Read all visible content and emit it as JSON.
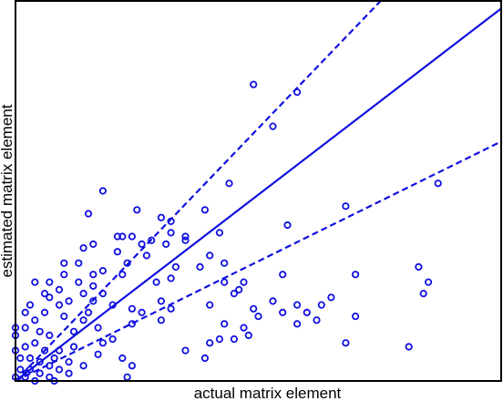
{
  "chart_data": {
    "type": "scatter",
    "title": "",
    "xlabel": "actual matrix element",
    "ylabel": "estimated matrix element",
    "xlim": [
      0,
      1
    ],
    "ylim": [
      0,
      1
    ],
    "grid": false,
    "legend": "none",
    "colors": {
      "marker": "#1010e0",
      "lines": "#1010e0",
      "frame": "#000000"
    },
    "lines": [
      {
        "style": "solid",
        "slope": 0.98
      },
      {
        "style": "dashed",
        "slope": 1.33
      },
      {
        "style": "dashed",
        "slope": 0.63
      }
    ],
    "series": [
      {
        "points": [
          [
            0.49,
            0.78
          ],
          [
            0.58,
            0.76
          ],
          [
            0.53,
            0.67
          ],
          [
            0.44,
            0.52
          ],
          [
            0.87,
            0.52
          ],
          [
            0.18,
            0.5
          ],
          [
            0.15,
            0.44
          ],
          [
            0.39,
            0.45
          ],
          [
            0.3,
            0.43
          ],
          [
            0.32,
            0.42
          ],
          [
            0.32,
            0.39
          ],
          [
            0.35,
            0.37
          ],
          [
            0.56,
            0.41
          ],
          [
            0.68,
            0.46
          ],
          [
            0.21,
            0.38
          ],
          [
            0.22,
            0.38
          ],
          [
            0.24,
            0.38
          ],
          [
            0.26,
            0.36
          ],
          [
            0.28,
            0.37
          ],
          [
            0.31,
            0.36
          ],
          [
            0.16,
            0.36
          ],
          [
            0.14,
            0.35
          ],
          [
            0.21,
            0.34
          ],
          [
            0.27,
            0.33
          ],
          [
            0.23,
            0.31
          ],
          [
            0.32,
            0.27
          ],
          [
            0.33,
            0.3
          ],
          [
            0.29,
            0.26
          ],
          [
            0.22,
            0.28
          ],
          [
            0.18,
            0.29
          ],
          [
            0.16,
            0.28
          ],
          [
            0.13,
            0.31
          ],
          [
            0.13,
            0.26
          ],
          [
            0.1,
            0.31
          ],
          [
            0.1,
            0.28
          ],
          [
            0.16,
            0.25
          ],
          [
            0.14,
            0.23
          ],
          [
            0.11,
            0.21
          ],
          [
            0.09,
            0.24
          ],
          [
            0.06,
            0.23
          ],
          [
            0.09,
            0.2
          ],
          [
            0.1,
            0.17
          ],
          [
            0.06,
            0.18
          ],
          [
            0.2,
            0.2
          ],
          [
            0.16,
            0.21
          ],
          [
            0.18,
            0.23
          ],
          [
            0.24,
            0.19
          ],
          [
            0.26,
            0.18
          ],
          [
            0.3,
            0.21
          ],
          [
            0.32,
            0.19
          ],
          [
            0.3,
            0.16
          ],
          [
            0.24,
            0.15
          ],
          [
            0.15,
            0.18
          ],
          [
            0.17,
            0.14
          ],
          [
            0.14,
            0.16
          ],
          [
            0.12,
            0.13
          ],
          [
            0.2,
            0.11
          ],
          [
            0.18,
            0.1
          ],
          [
            0.17,
            0.07
          ],
          [
            0.22,
            0.06
          ],
          [
            0.24,
            0.04
          ],
          [
            0.23,
            0.01
          ],
          [
            0.14,
            0.04
          ],
          [
            0.11,
            0.02
          ],
          [
            0.11,
            0.05
          ],
          [
            0.08,
            0.06
          ],
          [
            0.04,
            0.26
          ],
          [
            0.07,
            0.26
          ],
          [
            0.07,
            0.22
          ],
          [
            0.03,
            0.2
          ],
          [
            0.02,
            0.18
          ],
          [
            0.04,
            0.16
          ],
          [
            0.05,
            0.13
          ],
          [
            0.02,
            0.14
          ],
          [
            0.04,
            0.1
          ],
          [
            0.07,
            0.12
          ],
          [
            0.02,
            0.09
          ],
          [
            0.06,
            0.08
          ],
          [
            0.09,
            0.08
          ],
          [
            0.12,
            0.09
          ],
          [
            0.03,
            0.06
          ],
          [
            0.05,
            0.05
          ],
          [
            0.07,
            0.04
          ],
          [
            0.09,
            0.03
          ],
          [
            0.03,
            0.03
          ],
          [
            0.05,
            0.02
          ],
          [
            0.07,
            0.01
          ],
          [
            0.02,
            0.01
          ],
          [
            0.01,
            0.03
          ],
          [
            0.0,
            0.01
          ],
          [
            0.04,
            0.0
          ],
          [
            0.08,
            0.0
          ],
          [
            0.01,
            0.06
          ],
          [
            0.0,
            0.12
          ],
          [
            0.0,
            0.08
          ],
          [
            0.0,
            0.14
          ],
          [
            0.45,
            0.23
          ],
          [
            0.4,
            0.2
          ],
          [
            0.43,
            0.15
          ],
          [
            0.47,
            0.14
          ],
          [
            0.49,
            0.19
          ],
          [
            0.5,
            0.17
          ],
          [
            0.48,
            0.12
          ],
          [
            0.45,
            0.11
          ],
          [
            0.35,
            0.08
          ],
          [
            0.39,
            0.06
          ],
          [
            0.4,
            0.1
          ],
          [
            0.42,
            0.11
          ],
          [
            0.55,
            0.28
          ],
          [
            0.53,
            0.21
          ],
          [
            0.55,
            0.18
          ],
          [
            0.58,
            0.2
          ],
          [
            0.6,
            0.18
          ],
          [
            0.62,
            0.16
          ],
          [
            0.58,
            0.15
          ],
          [
            0.63,
            0.2
          ],
          [
            0.65,
            0.22
          ],
          [
            0.7,
            0.28
          ],
          [
            0.7,
            0.17
          ],
          [
            0.68,
            0.1
          ],
          [
            0.84,
            0.23
          ],
          [
            0.83,
            0.3
          ],
          [
            0.85,
            0.26
          ],
          [
            0.81,
            0.09
          ],
          [
            0.43,
            0.31
          ],
          [
            0.4,
            0.33
          ],
          [
            0.46,
            0.24
          ],
          [
            0.47,
            0.26
          ],
          [
            0.43,
            0.26
          ],
          [
            0.25,
            0.45
          ],
          [
            0.35,
            0.38
          ],
          [
            0.42,
            0.39
          ],
          [
            0.38,
            0.3
          ]
        ]
      }
    ]
  }
}
